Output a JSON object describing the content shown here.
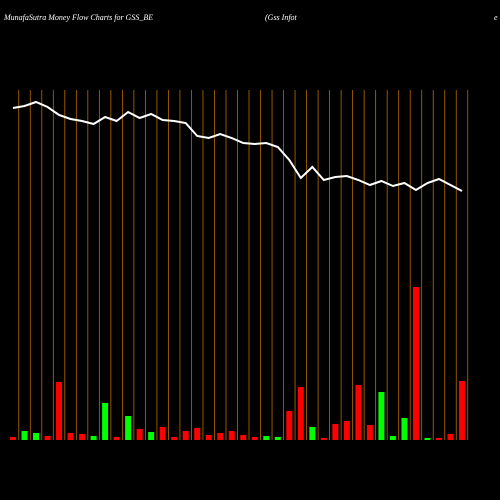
{
  "chart_data": {
    "type": "bar",
    "title": "MunafaSutra  Money Flow  Charts for GSS_BE",
    "subtitle": "(Gss Infot",
    "corner_text": "e",
    "ylim": [
      0,
      350
    ],
    "series": [
      {
        "name": "Money Flow",
        "kind": "bar",
        "colors": [
          "#ff0000",
          "#00ff00",
          "#00ff00",
          "#ff0000",
          "#ff0000",
          "#ff0000",
          "#ff0000",
          "#00ff00",
          "#00ff00",
          "#ff0000",
          "#00ff00",
          "#ff0000",
          "#00ff00",
          "#ff0000",
          "#ff0000",
          "#ff0000",
          "#ff0000",
          "#ff0000",
          "#ff0000",
          "#ff0000",
          "#ff0000",
          "#ff0000",
          "#00ff00",
          "#00ff00",
          "#ff0000",
          "#ff0000",
          "#00ff00",
          "#ff0000",
          "#ff0000",
          "#ff0000",
          "#ff0000",
          "#ff0000",
          "#00ff00",
          "#00ff00",
          "#00ff00",
          "#ff0000",
          "#00ff00",
          "#ff0000",
          "#ff0000",
          "#ff0000"
        ],
        "values": [
          3,
          9,
          7,
          4,
          58,
          7,
          6,
          4,
          37,
          3,
          24,
          11,
          8,
          13,
          3,
          9,
          12,
          5,
          7,
          9,
          5,
          3,
          4,
          3,
          29,
          53,
          13,
          2,
          16,
          19,
          55,
          15,
          48,
          4,
          22,
          153,
          2,
          2,
          6,
          59
        ]
      },
      {
        "name": "Price",
        "kind": "line",
        "color": "#ffffff",
        "values": [
          332,
          334,
          338,
          333,
          325,
          321,
          319,
          316,
          323,
          319,
          328,
          322,
          326,
          320,
          319,
          317,
          304,
          302,
          306,
          302,
          297,
          296,
          297,
          293,
          280,
          262,
          273,
          260,
          263,
          264,
          260,
          255,
          259,
          254,
          257,
          250,
          257,
          261,
          255,
          249
        ]
      }
    ]
  }
}
